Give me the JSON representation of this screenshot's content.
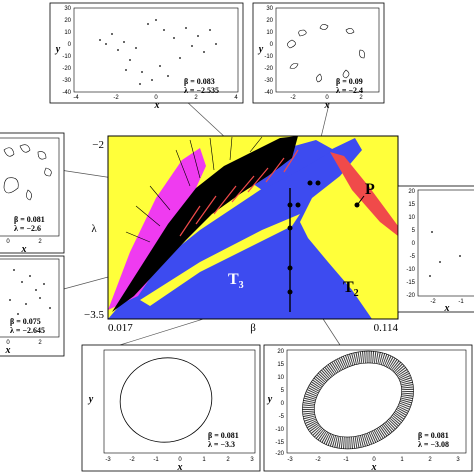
{
  "main_diagram": {
    "y_top_label": "−2",
    "y_bottom_label": "−3.5",
    "y_axis_label": "λ",
    "x_left_label": "0.017",
    "x_right_label": "0.114",
    "x_axis_label": "β",
    "region_labels": {
      "p": "P",
      "t3": "T",
      "t3_sub": "3",
      "t2": "T",
      "t2_sub": "2"
    },
    "colors": {
      "yellow": "#ffff3a",
      "blue": "#3d4bf0",
      "magenta": "#ef3bf0",
      "black": "#000000",
      "red": "#f04a4a"
    }
  },
  "insets": {
    "top_left": {
      "x_ticks": [
        "-4",
        "-2",
        "0",
        "2",
        "4"
      ],
      "y_ticks": [
        "30",
        "20",
        "10",
        "0",
        "-10",
        "-20",
        "-30",
        "-40"
      ],
      "xlabel": "x",
      "ylabel": "y",
      "beta": "β = 0.083",
      "lambda": "λ = −2.535"
    },
    "top_right": {
      "x_ticks": [
        "-2",
        "0",
        "2"
      ],
      "y_ticks": [
        "30",
        "20",
        "10",
        "0",
        "-10",
        "-20",
        "-30",
        "-40"
      ],
      "xlabel": "x",
      "ylabel": "y",
      "beta": "β = 0.09",
      "lambda": "λ = −2.4"
    },
    "mid_left_top": {
      "x_ticks": [
        "0",
        "2"
      ],
      "xlabel": "x",
      "beta": "β = 0.081",
      "lambda": "λ = −2.6"
    },
    "mid_left_bottom": {
      "x_ticks": [
        "0",
        "2"
      ],
      "xlabel": "x",
      "beta": "β = 0.075",
      "lambda": "λ = −2.645"
    },
    "right": {
      "x_ticks": [
        "-2",
        "-1"
      ],
      "y_ticks": [
        "20",
        "15",
        "10",
        "5",
        "0",
        "-5",
        "-10",
        "-15",
        "-20"
      ],
      "xlabel": "x"
    },
    "bottom_left": {
      "x_ticks": [
        "-3",
        "-2",
        "-1",
        "0",
        "1",
        "2",
        "3"
      ],
      "xlabel": "x",
      "ylabel": "y",
      "beta": "β = 0.081",
      "lambda": "λ = −3.3"
    },
    "bottom_right": {
      "x_ticks": [
        "-3",
        "-2",
        "-1",
        "0",
        "1",
        "2",
        "3"
      ],
      "y_ticks": [
        "20",
        "15",
        "10",
        "5",
        "0",
        "-5",
        "-10",
        "-15",
        "-20"
      ],
      "xlabel": "x",
      "ylabel": "y",
      "beta": "β = 0.081",
      "lambda": "λ = −3.08"
    }
  }
}
